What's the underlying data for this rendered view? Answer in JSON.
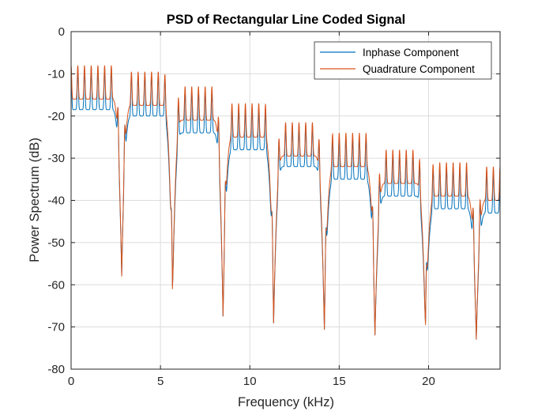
{
  "chart_data": {
    "type": "line",
    "title": "PSD of Rectangular Line Coded Signal",
    "xlabel": "Frequency (kHz)",
    "ylabel": "Power Spectrum (dB)",
    "xlim": [
      0,
      24
    ],
    "ylim": [
      -80,
      0
    ],
    "x_ticks": [
      0,
      5,
      10,
      15,
      20
    ],
    "x_tick_labels": [
      "0",
      "5",
      "10",
      "15",
      "20"
    ],
    "y_ticks": [
      0,
      -10,
      -20,
      -30,
      -40,
      -50,
      -60,
      -70,
      -80
    ],
    "y_tick_labels": [
      "0",
      "-10",
      "-20",
      "-30",
      "-40",
      "-50",
      "-60",
      "-70",
      "-80"
    ],
    "grid": true,
    "legend_position": "top-right",
    "null_frequencies": [
      2.83,
      5.67,
      8.5,
      11.33,
      14.17,
      17.0,
      19.83,
      22.67
    ],
    "null_levels": [
      -58,
      -64,
      -67.5,
      -69.5,
      -71,
      -72,
      -72.5,
      -73
    ],
    "spike_spacing": 0.375,
    "series": [
      {
        "name": "Inphase Component",
        "color": "#0072BD",
        "floor_offset_db": -2,
        "peak_envelope_db": [
          -8.5,
          -10,
          -14,
          -18,
          -22,
          -25,
          -29,
          -32,
          -33,
          -35
        ]
      },
      {
        "name": "Quadrature Component",
        "color": "#D95319",
        "floor_offset_db": 0,
        "peak_envelope_db": [
          -8,
          -9.5,
          -13,
          -17,
          -21.5,
          -24,
          -28,
          -31,
          -32,
          -34
        ]
      }
    ]
  }
}
